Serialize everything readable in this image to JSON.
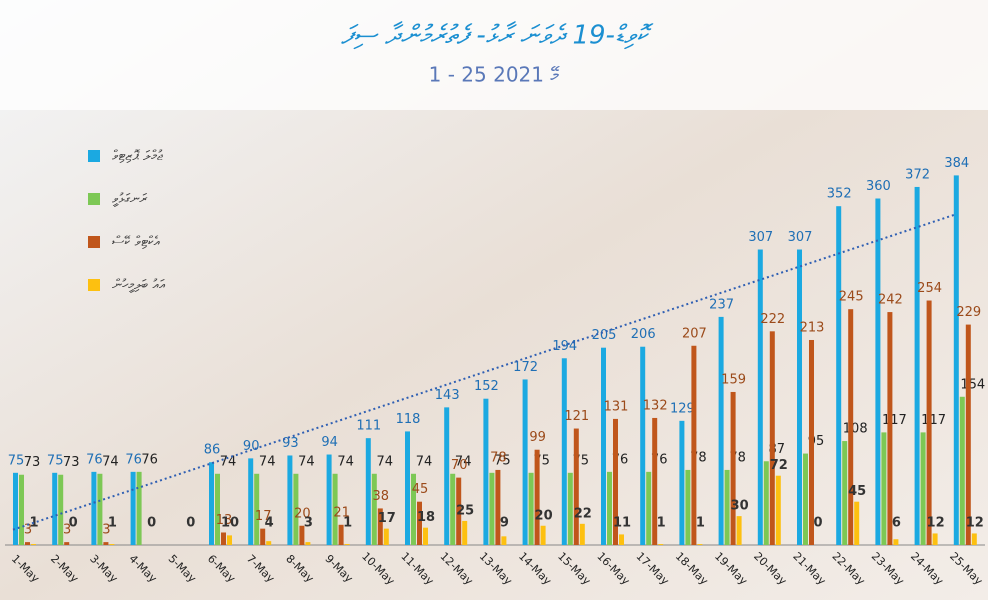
{
  "chart_data": {
    "type": "bar",
    "title": "ކޮވިޑް-19 ދެވަނަ ރާޅު- ފެތުރެމުންދާ ސިފަ",
    "subtitle": "1 - 25 މޭ 2021",
    "categories": [
      "1-May",
      "2-May",
      "3-May",
      "4-May",
      "5-May",
      "6-May",
      "7-May",
      "8-May",
      "9-May",
      "10-May",
      "11-May",
      "12-May",
      "13-May",
      "14-May",
      "15-May",
      "16-May",
      "17-May",
      "18-May",
      "19-May",
      "20-May",
      "21-May",
      "22-May",
      "23-May",
      "24-May",
      "25-May"
    ],
    "series": [
      {
        "name": "ޖުމްލަ ޕޮޒިޓިވް",
        "color": "#1ba9e1",
        "label_color": "#1f6fb5",
        "values": [
          75,
          75,
          76,
          76,
          null,
          86,
          90,
          93,
          94,
          111,
          118,
          143,
          152,
          172,
          194,
          205,
          206,
          129,
          237,
          307,
          307,
          352,
          360,
          372,
          384
        ]
      },
      {
        "name": "ރަނގަޅުވީ",
        "color": "#7dc855",
        "label_color": "#222222",
        "values": [
          73,
          73,
          74,
          76,
          null,
          74,
          74,
          74,
          74,
          74,
          74,
          74,
          75,
          75,
          75,
          76,
          76,
          78,
          78,
          87,
          95,
          108,
          117,
          117,
          154
        ]
      },
      {
        "name": "އެކްޓިވް ކޭސް",
        "color": "#c0561b",
        "label_color": "#9b4a1a",
        "values": [
          3,
          3,
          3,
          null,
          null,
          13,
          17,
          20,
          21,
          38,
          45,
          70,
          78,
          99,
          121,
          131,
          132,
          207,
          159,
          222,
          213,
          245,
          242,
          254,
          229
        ]
      },
      {
        "name": "އައު ބަލިމީހުން",
        "color": "#fdc010",
        "label_color": "#333333",
        "values": [
          1,
          0,
          1,
          0,
          0,
          10,
          4,
          3,
          1,
          17,
          18,
          25,
          9,
          20,
          22,
          11,
          1,
          1,
          30,
          72,
          0,
          45,
          6,
          12,
          12
        ]
      }
    ],
    "ylim": [
      0,
      400
    ],
    "trendline": {
      "series": 0,
      "color": "#2f5fb3"
    }
  }
}
